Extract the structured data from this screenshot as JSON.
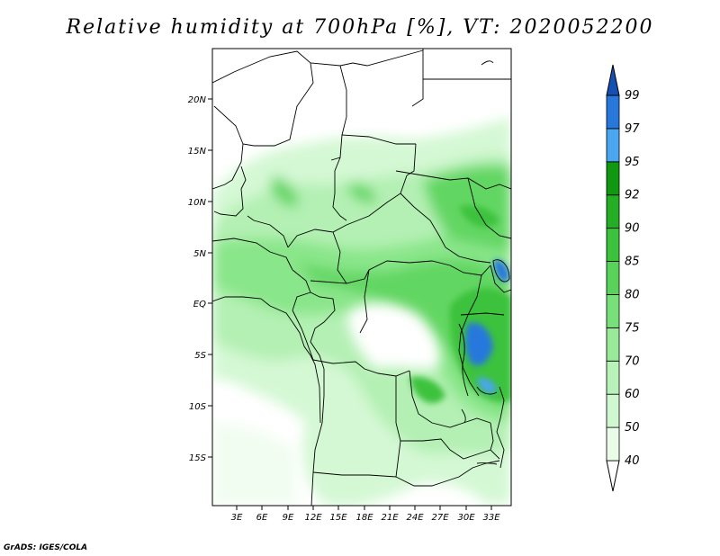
{
  "title": "Relative humidity at 700hPa [%], VT: 2020052200",
  "credit": "GrADS: IGES/COLA",
  "map": {
    "lon_ticks": [
      "3E",
      "6E",
      "9E",
      "12E",
      "15E",
      "18E",
      "21E",
      "24E",
      "27E",
      "30E",
      "33E"
    ],
    "lat_ticks": [
      "20N",
      "15N",
      "10N",
      "5N",
      "EQ",
      "5S",
      "10S",
      "15S"
    ]
  },
  "colorbar": {
    "levels": [
      "40",
      "50",
      "60",
      "70",
      "75",
      "80",
      "85",
      "90",
      "92",
      "95",
      "97",
      "99"
    ],
    "colors": [
      "#ffffff",
      "#e8fce8",
      "#d0f8d0",
      "#b8f2b8",
      "#98ea98",
      "#78e078",
      "#58d258",
      "#3cc23c",
      "#24ae24",
      "#109810",
      "#4aa6ee",
      "#2878dc",
      "#1450b4"
    ]
  }
}
